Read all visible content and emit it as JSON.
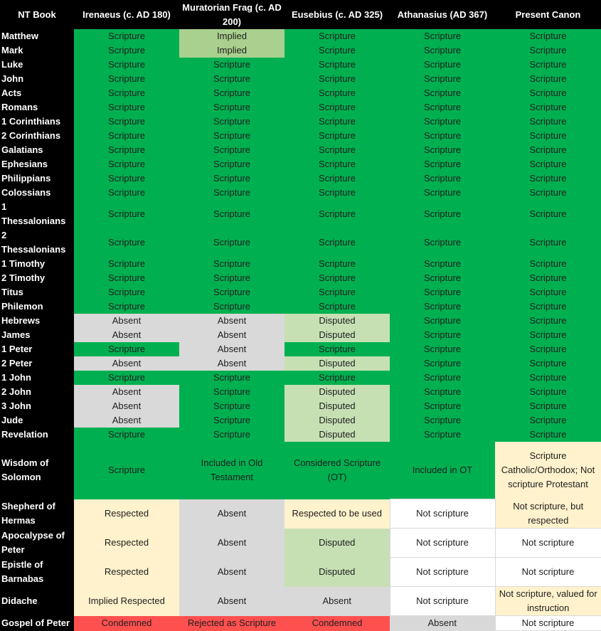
{
  "headers": [
    "NT Book",
    "Irenaeus (c. AD 180)",
    "Muratorian Frag (c. AD 200)",
    "Eusebius (c. AD 325)",
    "Athanasius (AD 367)",
    "Present Canon"
  ],
  "status_colors": {
    "green": "#00b050",
    "implied": "#a9d08e",
    "absent": "#d9d9d9",
    "disputed": "#c6e0b4",
    "respected": "#fff2cc",
    "condemned": "#ff5050",
    "white": "#ffffff"
  },
  "rows": [
    {
      "book": "Matthew",
      "cells": [
        {
          "t": "Scripture",
          "s": "green"
        },
        {
          "t": "Implied",
          "s": "implied"
        },
        {
          "t": "Scripture",
          "s": "green"
        },
        {
          "t": "Scripture",
          "s": "green"
        },
        {
          "t": "Scripture",
          "s": "green"
        }
      ]
    },
    {
      "book": "Mark",
      "cells": [
        {
          "t": "Scripture",
          "s": "green"
        },
        {
          "t": "Implied",
          "s": "implied"
        },
        {
          "t": "Scripture",
          "s": "green"
        },
        {
          "t": "Scripture",
          "s": "green"
        },
        {
          "t": "Scripture",
          "s": "green"
        }
      ]
    },
    {
      "book": "Luke",
      "cells": [
        {
          "t": "Scripture",
          "s": "green"
        },
        {
          "t": "Scripture",
          "s": "green"
        },
        {
          "t": "Scripture",
          "s": "green"
        },
        {
          "t": "Scripture",
          "s": "green"
        },
        {
          "t": "Scripture",
          "s": "green"
        }
      ]
    },
    {
      "book": "John",
      "cells": [
        {
          "t": "Scripture",
          "s": "green"
        },
        {
          "t": "Scripture",
          "s": "green"
        },
        {
          "t": "Scripture",
          "s": "green"
        },
        {
          "t": "Scripture",
          "s": "green"
        },
        {
          "t": "Scripture",
          "s": "green"
        }
      ]
    },
    {
      "book": "Acts",
      "cells": [
        {
          "t": "Scripture",
          "s": "green"
        },
        {
          "t": "Scripture",
          "s": "green"
        },
        {
          "t": "Scripture",
          "s": "green"
        },
        {
          "t": "Scripture",
          "s": "green"
        },
        {
          "t": "Scripture",
          "s": "green"
        }
      ]
    },
    {
      "book": "Romans",
      "cells": [
        {
          "t": "Scripture",
          "s": "green"
        },
        {
          "t": "Scripture",
          "s": "green"
        },
        {
          "t": "Scripture",
          "s": "green"
        },
        {
          "t": "Scripture",
          "s": "green"
        },
        {
          "t": "Scripture",
          "s": "green"
        }
      ]
    },
    {
      "book": "1 Corinthians",
      "cells": [
        {
          "t": "Scripture",
          "s": "green"
        },
        {
          "t": "Scripture",
          "s": "green"
        },
        {
          "t": "Scripture",
          "s": "green"
        },
        {
          "t": "Scripture",
          "s": "green"
        },
        {
          "t": "Scripture",
          "s": "green"
        }
      ]
    },
    {
      "book": "2 Corinthians",
      "cells": [
        {
          "t": "Scripture",
          "s": "green"
        },
        {
          "t": "Scripture",
          "s": "green"
        },
        {
          "t": "Scripture",
          "s": "green"
        },
        {
          "t": "Scripture",
          "s": "green"
        },
        {
          "t": "Scripture",
          "s": "green"
        }
      ]
    },
    {
      "book": "Galatians",
      "cells": [
        {
          "t": "Scripture",
          "s": "green"
        },
        {
          "t": "Scripture",
          "s": "green"
        },
        {
          "t": "Scripture",
          "s": "green"
        },
        {
          "t": "Scripture",
          "s": "green"
        },
        {
          "t": "Scripture",
          "s": "green"
        }
      ]
    },
    {
      "book": "Ephesians",
      "cells": [
        {
          "t": "Scripture",
          "s": "green"
        },
        {
          "t": "Scripture",
          "s": "green"
        },
        {
          "t": "Scripture",
          "s": "green"
        },
        {
          "t": "Scripture",
          "s": "green"
        },
        {
          "t": "Scripture",
          "s": "green"
        }
      ]
    },
    {
      "book": "Philippians",
      "cells": [
        {
          "t": "Scripture",
          "s": "green"
        },
        {
          "t": "Scripture",
          "s": "green"
        },
        {
          "t": "Scripture",
          "s": "green"
        },
        {
          "t": "Scripture",
          "s": "green"
        },
        {
          "t": "Scripture",
          "s": "green"
        }
      ]
    },
    {
      "book": "Colossians",
      "cells": [
        {
          "t": "Scripture",
          "s": "green"
        },
        {
          "t": "Scripture",
          "s": "green"
        },
        {
          "t": "Scripture",
          "s": "green"
        },
        {
          "t": "Scripture",
          "s": "green"
        },
        {
          "t": "Scripture",
          "s": "green"
        }
      ]
    },
    {
      "book": "1 Thessalonians",
      "cells": [
        {
          "t": "Scripture",
          "s": "green"
        },
        {
          "t": "Scripture",
          "s": "green"
        },
        {
          "t": "Scripture",
          "s": "green"
        },
        {
          "t": "Scripture",
          "s": "green"
        },
        {
          "t": "Scripture",
          "s": "green"
        }
      ]
    },
    {
      "book": "2 Thessalonians",
      "cells": [
        {
          "t": "Scripture",
          "s": "green"
        },
        {
          "t": "Scripture",
          "s": "green"
        },
        {
          "t": "Scripture",
          "s": "green"
        },
        {
          "t": "Scripture",
          "s": "green"
        },
        {
          "t": "Scripture",
          "s": "green"
        }
      ]
    },
    {
      "book": "1 Timothy",
      "cells": [
        {
          "t": "Scripture",
          "s": "green"
        },
        {
          "t": "Scripture",
          "s": "green"
        },
        {
          "t": "Scripture",
          "s": "green"
        },
        {
          "t": "Scripture",
          "s": "green"
        },
        {
          "t": "Scripture",
          "s": "green"
        }
      ]
    },
    {
      "book": "2 Timothy",
      "cells": [
        {
          "t": "Scripture",
          "s": "green"
        },
        {
          "t": "Scripture",
          "s": "green"
        },
        {
          "t": "Scripture",
          "s": "green"
        },
        {
          "t": "Scripture",
          "s": "green"
        },
        {
          "t": "Scripture",
          "s": "green"
        }
      ]
    },
    {
      "book": "Titus",
      "cells": [
        {
          "t": "Scripture",
          "s": "green"
        },
        {
          "t": "Scripture",
          "s": "green"
        },
        {
          "t": "Scripture",
          "s": "green"
        },
        {
          "t": "Scripture",
          "s": "green"
        },
        {
          "t": "Scripture",
          "s": "green"
        }
      ]
    },
    {
      "book": "Philemon",
      "cells": [
        {
          "t": "Scripture",
          "s": "green"
        },
        {
          "t": "Scripture",
          "s": "green"
        },
        {
          "t": "Scripture",
          "s": "green"
        },
        {
          "t": "Scripture",
          "s": "green"
        },
        {
          "t": "Scripture",
          "s": "green"
        }
      ]
    },
    {
      "book": "Hebrews",
      "cells": [
        {
          "t": "Absent",
          "s": "absent"
        },
        {
          "t": "Absent",
          "s": "absent"
        },
        {
          "t": "Disputed",
          "s": "disputed"
        },
        {
          "t": "Scripture",
          "s": "green"
        },
        {
          "t": "Scripture",
          "s": "green"
        }
      ]
    },
    {
      "book": "James",
      "cells": [
        {
          "t": "Absent",
          "s": "absent"
        },
        {
          "t": "Absent",
          "s": "absent"
        },
        {
          "t": "Disputed",
          "s": "disputed"
        },
        {
          "t": "Scripture",
          "s": "green"
        },
        {
          "t": "Scripture",
          "s": "green"
        }
      ]
    },
    {
      "book": "1 Peter",
      "cells": [
        {
          "t": "Scripture",
          "s": "green"
        },
        {
          "t": "Absent",
          "s": "absent"
        },
        {
          "t": "Scripture",
          "s": "green"
        },
        {
          "t": "Scripture",
          "s": "green"
        },
        {
          "t": "Scripture",
          "s": "green"
        }
      ]
    },
    {
      "book": "2 Peter",
      "cells": [
        {
          "t": "Absent",
          "s": "absent"
        },
        {
          "t": "Absent",
          "s": "absent"
        },
        {
          "t": "Disputed",
          "s": "disputed"
        },
        {
          "t": "Scripture",
          "s": "green"
        },
        {
          "t": "Scripture",
          "s": "green"
        }
      ]
    },
    {
      "book": "1 John",
      "cells": [
        {
          "t": "Scripture",
          "s": "green"
        },
        {
          "t": "Scripture",
          "s": "green"
        },
        {
          "t": "Scripture",
          "s": "green"
        },
        {
          "t": "Scripture",
          "s": "green"
        },
        {
          "t": "Scripture",
          "s": "green"
        }
      ]
    },
    {
      "book": "2 John",
      "cells": [
        {
          "t": "Absent",
          "s": "absent"
        },
        {
          "t": "Scripture",
          "s": "green"
        },
        {
          "t": "Disputed",
          "s": "disputed"
        },
        {
          "t": "Scripture",
          "s": "green"
        },
        {
          "t": "Scripture",
          "s": "green"
        }
      ]
    },
    {
      "book": "3 John",
      "cells": [
        {
          "t": "Absent",
          "s": "absent"
        },
        {
          "t": "Scripture",
          "s": "green"
        },
        {
          "t": "Disputed",
          "s": "disputed"
        },
        {
          "t": "Scripture",
          "s": "green"
        },
        {
          "t": "Scripture",
          "s": "green"
        }
      ]
    },
    {
      "book": "Jude",
      "cells": [
        {
          "t": "Absent",
          "s": "absent"
        },
        {
          "t": "Scripture",
          "s": "green"
        },
        {
          "t": "Disputed",
          "s": "disputed"
        },
        {
          "t": "Scripture",
          "s": "green"
        },
        {
          "t": "Scripture",
          "s": "green"
        }
      ]
    },
    {
      "book": "Revelation",
      "cells": [
        {
          "t": "Scripture",
          "s": "green"
        },
        {
          "t": "Scripture",
          "s": "green"
        },
        {
          "t": "Disputed",
          "s": "disputed"
        },
        {
          "t": "Scripture",
          "s": "green"
        },
        {
          "t": "Scripture",
          "s": "green"
        }
      ]
    },
    {
      "book": "Wisdom of Solomon",
      "cells": [
        {
          "t": "Scripture",
          "s": "green"
        },
        {
          "t": "Included in Old Testament",
          "s": "green"
        },
        {
          "t": "Considered Scripture (OT)",
          "s": "green"
        },
        {
          "t": "Included in OT",
          "s": "green"
        },
        {
          "t": "Scripture Catholic/Orthodox; Not scripture Protestant",
          "s": "respected"
        }
      ]
    },
    {
      "book": "Shepherd of Hermas",
      "cells": [
        {
          "t": "Respected",
          "s": "respected"
        },
        {
          "t": "Absent",
          "s": "absent"
        },
        {
          "t": "Respected to be used",
          "s": "respected"
        },
        {
          "t": "Not scripture",
          "s": "white"
        },
        {
          "t": "Not scripture, but respected",
          "s": "respected"
        }
      ]
    },
    {
      "book": "Apocalypse of Peter",
      "cells": [
        {
          "t": "Respected",
          "s": "respected"
        },
        {
          "t": "Absent",
          "s": "absent"
        },
        {
          "t": "Disputed",
          "s": "disputed"
        },
        {
          "t": "Not scripture",
          "s": "white"
        },
        {
          "t": "Not scripture",
          "s": "white"
        }
      ]
    },
    {
      "book": "Epistle of Barnabas",
      "cells": [
        {
          "t": "Respected",
          "s": "respected"
        },
        {
          "t": "Absent",
          "s": "absent"
        },
        {
          "t": "Disputed",
          "s": "disputed"
        },
        {
          "t": "Not scripture",
          "s": "white"
        },
        {
          "t": "Not scripture",
          "s": "white"
        }
      ]
    },
    {
      "book": "Didache",
      "cells": [
        {
          "t": "Implied Respected",
          "s": "respected"
        },
        {
          "t": "Absent",
          "s": "absent"
        },
        {
          "t": "Absent",
          "s": "absent"
        },
        {
          "t": "Not scripture",
          "s": "white"
        },
        {
          "t": "Not scripture, valued for instruction",
          "s": "respected"
        }
      ]
    },
    {
      "book": "Gospel of Peter",
      "cells": [
        {
          "t": "Condemned",
          "s": "condemned"
        },
        {
          "t": "Rejected as Scripture",
          "s": "condemned"
        },
        {
          "t": "Condemned",
          "s": "condemned"
        },
        {
          "t": "Absent",
          "s": "absent"
        },
        {
          "t": "Not scripture",
          "s": "white"
        }
      ]
    }
  ]
}
